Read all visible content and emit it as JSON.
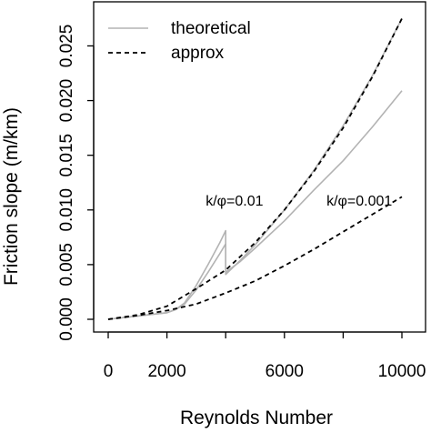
{
  "chart_data": {
    "type": "line",
    "title": "",
    "xlabel": "Reynolds Number",
    "ylabel": "Friction slope (m/km)",
    "xlim": [
      0,
      10000
    ],
    "ylim": [
      0,
      0.028
    ],
    "xticks": [
      0,
      2000,
      6000,
      10000
    ],
    "xtick_minor": [
      4000,
      8000
    ],
    "xtick_labels": [
      "0",
      "2000",
      "6000",
      "10000"
    ],
    "yticks": [
      0.0,
      0.005,
      0.01,
      0.015,
      0.02,
      0.025
    ],
    "ytick_labels": [
      "0.000",
      "0.005",
      "0.010",
      "0.015",
      "0.020",
      "0.025"
    ],
    "grid": false,
    "legend": {
      "position": "top-left",
      "entries": [
        {
          "label": "theoretical",
          "style": "solid",
          "color": "#b3b3b3"
        },
        {
          "label": "approx",
          "style": "dashed",
          "color": "#000000"
        }
      ]
    },
    "annotations": [
      {
        "text": "k/φ=0.01",
        "x": 4300,
        "y": 0.0109
      },
      {
        "text": "k/φ=0.001",
        "x": 8550,
        "y": 0.0109
      }
    ],
    "series": [
      {
        "label": "k/φ=0.01",
        "style": "solid",
        "color": "#b3b3b3",
        "x": [
          0,
          500,
          1000,
          1500,
          2000,
          2300,
          2600,
          3000,
          3400,
          3800,
          3999,
          4000,
          4500,
          5000,
          6000,
          7000,
          8000,
          9000,
          10000
        ],
        "y": [
          0,
          0.00015,
          0.0003,
          0.00045,
          0.0006,
          0.0009,
          0.0015,
          0.0031,
          0.005,
          0.007,
          0.0081,
          0.0041,
          0.0054,
          0.0068,
          0.01,
          0.0136,
          0.0177,
          0.0223,
          0.0275
        ]
      },
      {
        "label": "k/φ=0.001",
        "style": "solid",
        "color": "#b3b3b3",
        "x": [
          0,
          500,
          1000,
          1500,
          2000,
          2300,
          2600,
          3000,
          3400,
          3800,
          3999,
          4000,
          4500,
          5000,
          6000,
          7000,
          8000,
          9000,
          10000
        ],
        "y": [
          0,
          0.00015,
          0.0003,
          0.00045,
          0.0006,
          0.0009,
          0.0014,
          0.0027,
          0.0043,
          0.006,
          0.0069,
          0.0043,
          0.0053,
          0.0065,
          0.009,
          0.0118,
          0.0145,
          0.0176,
          0.0209
        ]
      },
      {
        "label": "k/φ=0.01",
        "style": "dashed",
        "color": "#000000",
        "x": [
          0,
          1000,
          2000,
          3000,
          4000,
          5000,
          6000,
          7000,
          8000,
          9000,
          10000
        ],
        "y": [
          0,
          0.0004,
          0.0012,
          0.0028,
          0.0045,
          0.007,
          0.01,
          0.0135,
          0.0175,
          0.0222,
          0.0275
        ]
      },
      {
        "label": "k/φ=0.001",
        "style": "dashed",
        "color": "#000000",
        "x": [
          0,
          1000,
          2000,
          3000,
          4000,
          5000,
          6000,
          7000,
          8000,
          9000,
          10000
        ],
        "y": [
          0,
          0.00035,
          0.0008,
          0.0014,
          0.0024,
          0.0035,
          0.0049,
          0.0064,
          0.008,
          0.0096,
          0.0112
        ]
      }
    ]
  }
}
